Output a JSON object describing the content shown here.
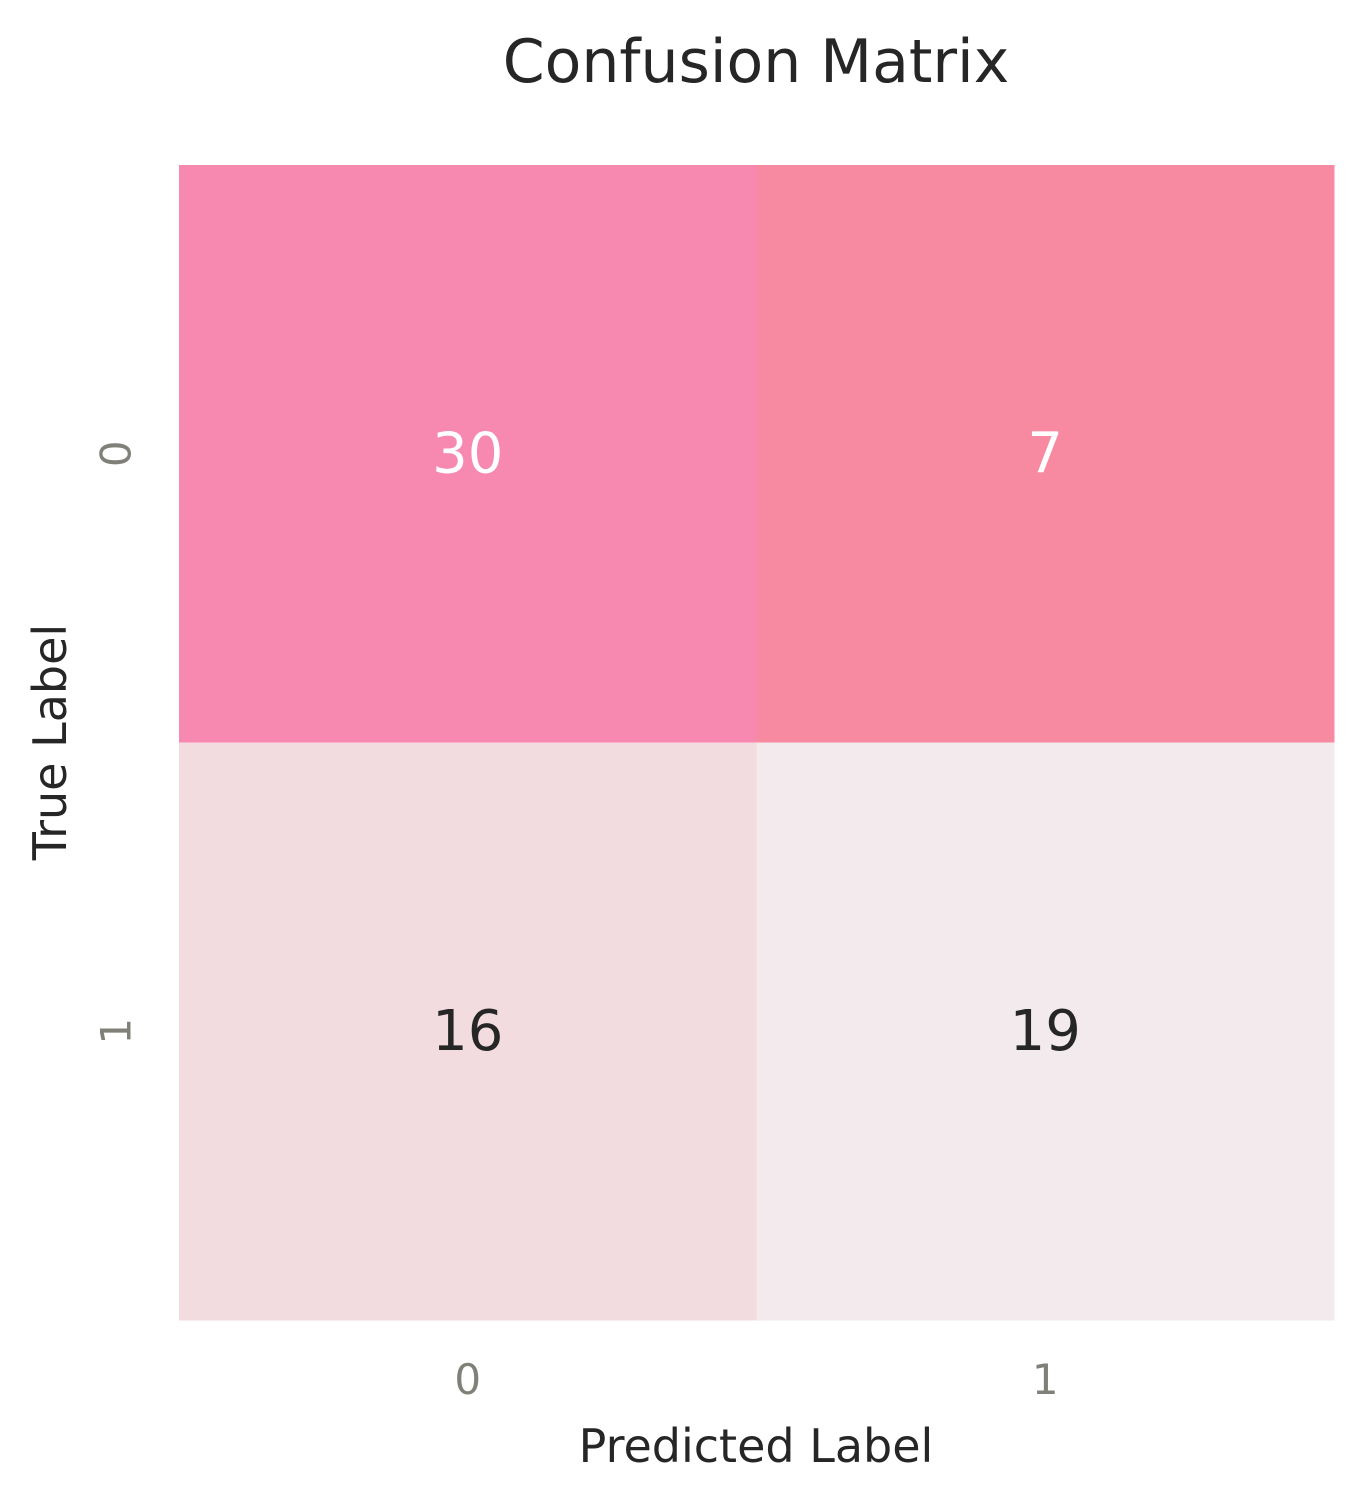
{
  "chart_data": {
    "type": "heatmap",
    "title": "Confusion Matrix",
    "xlabel": "Predicted Label",
    "ylabel": "True Label",
    "x_categories": [
      "0",
      "1"
    ],
    "y_categories": [
      "0",
      "1"
    ],
    "values": [
      [
        30,
        7
      ],
      [
        16,
        19
      ]
    ],
    "cell_colors": [
      [
        "#f788b0",
        "#f78aa0"
      ],
      [
        "#f3dce0",
        "#f2eaed"
      ]
    ],
    "cell_text_colors": [
      [
        "#ffffff",
        "#ffffff"
      ],
      [
        "#262626",
        "#262626"
      ]
    ],
    "colorbar": false,
    "grid": false
  }
}
